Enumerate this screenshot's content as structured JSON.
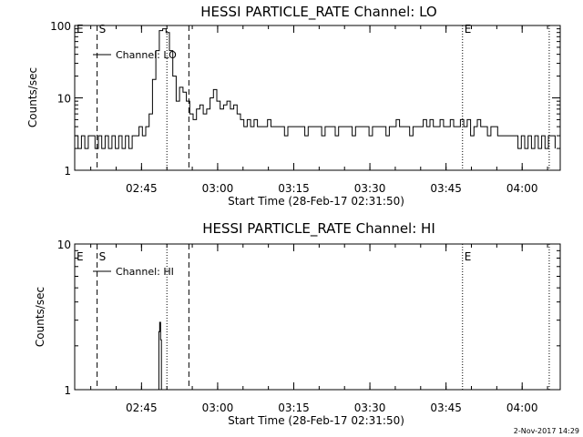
{
  "chart_data": [
    {
      "type": "line",
      "title": "HESSI PARTICLE_RATE Channel: LO",
      "xlabel": "Start Time (28-Feb-17 02:31:50)",
      "ylabel": "Counts/sec",
      "yscale": "log",
      "ylim": [
        1,
        100
      ],
      "xlim": [
        "02:31:50",
        "04:07:30"
      ],
      "x_ticks": [
        "02:45",
        "03:00",
        "03:15",
        "03:30",
        "03:45",
        "04:00"
      ],
      "y_ticks": [
        "1",
        "10",
        "100"
      ],
      "legend": {
        "entries": [
          "Channel: LO"
        ],
        "placement": "top-left"
      },
      "grid": false,
      "markers": [
        {
          "label": "E",
          "time": "02:31:50",
          "style": "dotted"
        },
        {
          "label": "S",
          "time": "02:36:15",
          "style": "dashed"
        },
        {
          "label": "",
          "time": "02:50:00",
          "style": "dotted"
        },
        {
          "label": "",
          "time": "02:54:20",
          "style": "dashed"
        },
        {
          "label": "E",
          "time": "03:48:15",
          "style": "dotted"
        },
        {
          "label": "",
          "time": "04:05:20",
          "style": "dotted"
        }
      ],
      "series": [
        {
          "name": "Channel: LO",
          "points": [
            [
              "02:31:50",
              3
            ],
            [
              "02:32:30",
              2
            ],
            [
              "02:33:10",
              3
            ],
            [
              "02:33:50",
              2
            ],
            [
              "02:34:30",
              3
            ],
            [
              "02:35:10",
              3
            ],
            [
              "02:35:50",
              2
            ],
            [
              "02:36:30",
              3
            ],
            [
              "02:37:10",
              2
            ],
            [
              "02:37:50",
              3
            ],
            [
              "02:38:30",
              2
            ],
            [
              "02:39:10",
              3
            ],
            [
              "02:39:50",
              2
            ],
            [
              "02:40:30",
              3
            ],
            [
              "02:41:10",
              2
            ],
            [
              "02:41:50",
              3
            ],
            [
              "02:42:30",
              2
            ],
            [
              "02:43:10",
              3
            ],
            [
              "02:43:50",
              3
            ],
            [
              "02:44:30",
              4
            ],
            [
              "02:45:10",
              3
            ],
            [
              "02:45:50",
              4
            ],
            [
              "02:46:30",
              6
            ],
            [
              "02:47:10",
              18
            ],
            [
              "02:47:50",
              45
            ],
            [
              "02:48:30",
              85
            ],
            [
              "02:49:10",
              90
            ],
            [
              "02:49:50",
              80
            ],
            [
              "02:50:30",
              45
            ],
            [
              "02:51:10",
              20
            ],
            [
              "02:51:50",
              9
            ],
            [
              "02:52:30",
              14
            ],
            [
              "02:53:10",
              12
            ],
            [
              "02:53:50",
              9
            ],
            [
              "02:54:30",
              6
            ],
            [
              "02:55:10",
              5
            ],
            [
              "02:55:50",
              7
            ],
            [
              "02:56:30",
              8
            ],
            [
              "02:57:10",
              6
            ],
            [
              "02:57:50",
              7
            ],
            [
              "02:58:30",
              10
            ],
            [
              "02:59:10",
              13
            ],
            [
              "02:59:50",
              9
            ],
            [
              "03:00:30",
              7
            ],
            [
              "03:01:10",
              8
            ],
            [
              "03:01:50",
              9
            ],
            [
              "03:02:30",
              7
            ],
            [
              "03:03:10",
              8
            ],
            [
              "03:03:50",
              6
            ],
            [
              "03:04:30",
              5
            ],
            [
              "03:05:10",
              4
            ],
            [
              "03:05:50",
              5
            ],
            [
              "03:06:30",
              4
            ],
            [
              "03:07:10",
              5
            ],
            [
              "03:07:50",
              4
            ],
            [
              "03:08:30",
              4
            ],
            [
              "03:09:10",
              4
            ],
            [
              "03:09:50",
              5
            ],
            [
              "03:10:30",
              4
            ],
            [
              "03:11:10",
              4
            ],
            [
              "03:11:50",
              4
            ],
            [
              "03:12:30",
              4
            ],
            [
              "03:13:10",
              3
            ],
            [
              "03:13:50",
              4
            ],
            [
              "03:14:30",
              4
            ],
            [
              "03:15:10",
              4
            ],
            [
              "03:15:50",
              4
            ],
            [
              "03:16:30",
              4
            ],
            [
              "03:17:10",
              3
            ],
            [
              "03:17:50",
              4
            ],
            [
              "03:18:30",
              4
            ],
            [
              "03:19:10",
              4
            ],
            [
              "03:19:50",
              4
            ],
            [
              "03:20:30",
              3
            ],
            [
              "03:21:10",
              4
            ],
            [
              "03:21:50",
              4
            ],
            [
              "03:22:30",
              4
            ],
            [
              "03:23:10",
              3
            ],
            [
              "03:23:50",
              4
            ],
            [
              "03:24:30",
              4
            ],
            [
              "03:25:10",
              4
            ],
            [
              "03:25:50",
              4
            ],
            [
              "03:26:30",
              3
            ],
            [
              "03:27:10",
              4
            ],
            [
              "03:27:50",
              4
            ],
            [
              "03:28:30",
              4
            ],
            [
              "03:29:10",
              4
            ],
            [
              "03:29:50",
              3
            ],
            [
              "03:30:30",
              4
            ],
            [
              "03:31:10",
              4
            ],
            [
              "03:31:50",
              4
            ],
            [
              "03:32:30",
              4
            ],
            [
              "03:33:10",
              3
            ],
            [
              "03:33:50",
              4
            ],
            [
              "03:34:30",
              4
            ],
            [
              "03:35:10",
              5
            ],
            [
              "03:35:50",
              4
            ],
            [
              "03:36:30",
              4
            ],
            [
              "03:37:10",
              4
            ],
            [
              "03:37:50",
              3
            ],
            [
              "03:38:30",
              4
            ],
            [
              "03:39:10",
              4
            ],
            [
              "03:39:50",
              4
            ],
            [
              "03:40:30",
              5
            ],
            [
              "03:41:10",
              4
            ],
            [
              "03:41:50",
              5
            ],
            [
              "03:42:30",
              4
            ],
            [
              "03:43:10",
              4
            ],
            [
              "03:43:50",
              5
            ],
            [
              "03:44:30",
              4
            ],
            [
              "03:45:10",
              4
            ],
            [
              "03:45:50",
              5
            ],
            [
              "03:46:30",
              4
            ],
            [
              "03:47:10",
              4
            ],
            [
              "03:47:50",
              5
            ],
            [
              "03:48:30",
              4
            ],
            [
              "03:49:10",
              5
            ],
            [
              "03:49:50",
              3
            ],
            [
              "03:50:30",
              4
            ],
            [
              "03:51:10",
              5
            ],
            [
              "03:51:50",
              4
            ],
            [
              "03:52:30",
              4
            ],
            [
              "03:53:10",
              3
            ],
            [
              "03:53:50",
              4
            ],
            [
              "03:54:30",
              4
            ],
            [
              "03:55:10",
              3
            ],
            [
              "03:55:50",
              3
            ],
            [
              "03:56:30",
              3
            ],
            [
              "03:57:10",
              3
            ],
            [
              "03:57:50",
              3
            ],
            [
              "03:58:30",
              3
            ],
            [
              "03:59:10",
              2
            ],
            [
              "03:59:50",
              3
            ],
            [
              "04:00:30",
              2
            ],
            [
              "04:01:10",
              3
            ],
            [
              "04:01:50",
              2
            ],
            [
              "04:02:30",
              3
            ],
            [
              "04:03:10",
              2
            ],
            [
              "04:03:50",
              3
            ],
            [
              "04:04:30",
              2
            ],
            [
              "04:05:10",
              3
            ],
            [
              "04:05:50",
              3
            ],
            [
              "04:06:30",
              2
            ]
          ]
        }
      ]
    },
    {
      "type": "line",
      "title": "HESSI PARTICLE_RATE Channel: HI",
      "xlabel": "Start Time (28-Feb-17 02:31:50)",
      "ylabel": "Counts/sec",
      "yscale": "log",
      "ylim": [
        1,
        10
      ],
      "xlim": [
        "02:31:50",
        "04:07:30"
      ],
      "x_ticks": [
        "02:45",
        "03:00",
        "03:15",
        "03:30",
        "03:45",
        "04:00"
      ],
      "y_ticks": [
        "1",
        "10"
      ],
      "legend": {
        "entries": [
          "Channel: HI"
        ],
        "placement": "top-left"
      },
      "grid": false,
      "markers": [
        {
          "label": "E",
          "time": "02:31:50",
          "style": "dotted"
        },
        {
          "label": "S",
          "time": "02:36:15",
          "style": "dashed"
        },
        {
          "label": "",
          "time": "02:50:00",
          "style": "dotted"
        },
        {
          "label": "",
          "time": "02:54:20",
          "style": "dashed"
        },
        {
          "label": "E",
          "time": "03:48:15",
          "style": "dotted"
        },
        {
          "label": "",
          "time": "04:05:20",
          "style": "dotted"
        }
      ],
      "series": [
        {
          "name": "Channel: HI",
          "points": [
            [
              "02:48:10",
              1
            ],
            [
              "02:48:25",
              2.5
            ],
            [
              "02:48:35",
              2.9
            ],
            [
              "02:48:45",
              2.2
            ],
            [
              "02:48:55",
              1
            ]
          ]
        }
      ]
    }
  ],
  "footer": {
    "timestamp": "2-Nov-2017 14:29"
  }
}
